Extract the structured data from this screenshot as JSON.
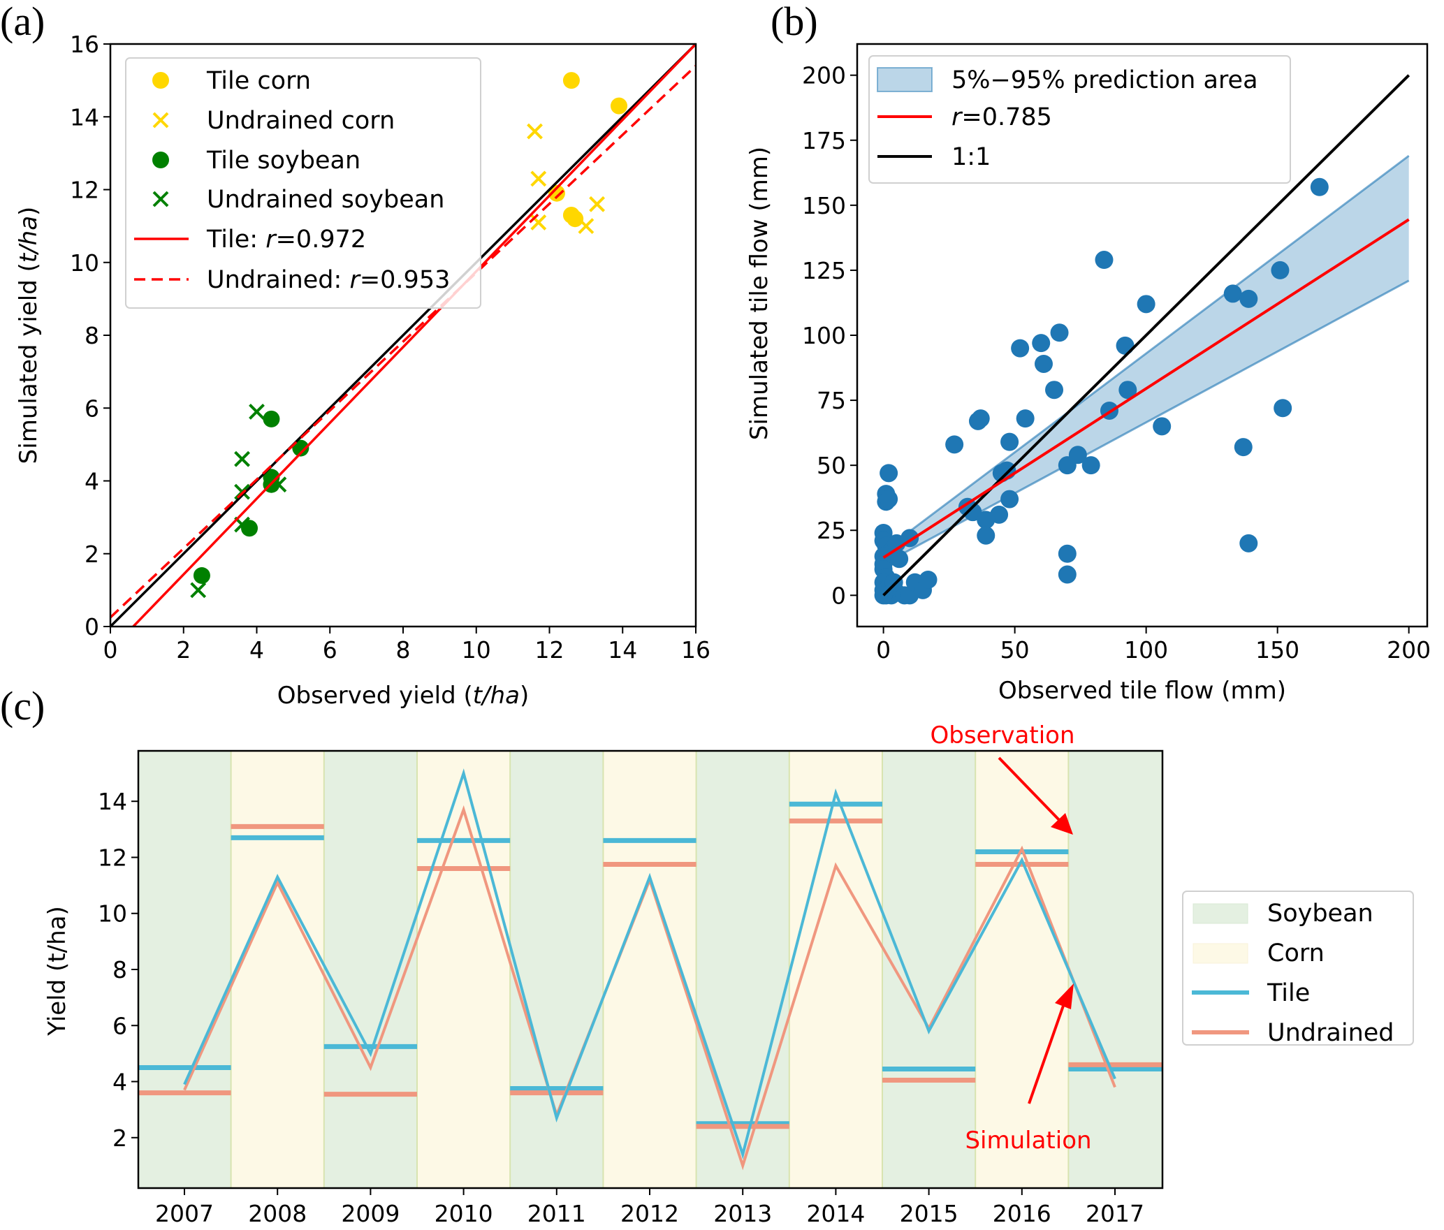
{
  "panel_labels": [
    "(a)",
    "(b)",
    "(c)"
  ],
  "chart_data": [
    {
      "id": "a",
      "type": "scatter",
      "xlabel": "Observed yield (t/ha)",
      "ylabel": "Simulated yield (t/ha)",
      "xlim": [
        0,
        16
      ],
      "ylim": [
        0,
        16
      ],
      "xticks": [
        0,
        2,
        4,
        6,
        8,
        10,
        12,
        14,
        16
      ],
      "yticks": [
        0,
        2,
        4,
        6,
        8,
        10,
        12,
        14,
        16
      ],
      "legend_position": "top-left",
      "series": [
        {
          "name": "Tile corn",
          "marker": "circle",
          "color": "#ffd700",
          "points": [
            [
              12.6,
              15.0
            ],
            [
              13.9,
              14.3
            ],
            [
              12.2,
              11.9
            ],
            [
              12.6,
              11.3
            ],
            [
              12.7,
              11.2
            ]
          ]
        },
        {
          "name": "Undrained corn",
          "marker": "x",
          "color": "#ffd700",
          "points": [
            [
              11.6,
              13.6
            ],
            [
              11.7,
              12.3
            ],
            [
              11.7,
              11.1
            ],
            [
              13.3,
              11.6
            ],
            [
              13.0,
              11.0
            ]
          ]
        },
        {
          "name": "Tile soybean",
          "marker": "circle",
          "color": "#008000",
          "points": [
            [
              4.4,
              5.7
            ],
            [
              5.2,
              4.9
            ],
            [
              4.4,
              4.1
            ],
            [
              4.4,
              3.9
            ],
            [
              3.8,
              2.7
            ],
            [
              2.5,
              1.4
            ]
          ]
        },
        {
          "name": "Undrained soybean",
          "marker": "x",
          "color": "#008000",
          "points": [
            [
              4.0,
              5.9
            ],
            [
              3.6,
              4.6
            ],
            [
              3.6,
              3.7
            ],
            [
              4.6,
              3.9
            ],
            [
              3.6,
              2.8
            ],
            [
              2.4,
              1.0
            ]
          ]
        }
      ],
      "lines": [
        {
          "name": "Tile: r=0.972",
          "label_prefix": "Tile: ",
          "r": "0.972",
          "style": "solid",
          "color": "#ff0000",
          "x": [
            0,
            16
          ],
          "y": [
            -0.65,
            16.0
          ]
        },
        {
          "name": "Undrained: r=0.953",
          "label_prefix": "Undrained: ",
          "r": "0.953",
          "style": "dashed",
          "color": "#ff0000",
          "x": [
            0,
            16
          ],
          "y": [
            0.25,
            15.4
          ]
        },
        {
          "name": "1:1",
          "style": "solid",
          "color": "#000000",
          "x": [
            0,
            16
          ],
          "y": [
            0,
            16
          ]
        }
      ]
    },
    {
      "id": "b",
      "type": "scatter",
      "xlabel": "Observed tile flow (mm)",
      "ylabel": "Simulated tile flow (mm)",
      "xlim": [
        -10,
        207
      ],
      "ylim": [
        -12,
        212
      ],
      "xticks": [
        0,
        50,
        100,
        150,
        200
      ],
      "yticks": [
        0,
        25,
        50,
        75,
        100,
        125,
        150,
        175,
        200
      ],
      "legend_position": "top-left",
      "legend": [
        "5%−95% prediction area",
        "r=0.785",
        "1:1"
      ],
      "r": "0.785",
      "point_color": "#1f77b4",
      "points": [
        [
          166,
          157
        ],
        [
          84,
          129
        ],
        [
          100,
          112
        ],
        [
          133,
          116
        ],
        [
          139,
          114
        ],
        [
          151,
          125
        ],
        [
          92,
          96
        ],
        [
          60,
          97
        ],
        [
          61,
          89
        ],
        [
          67,
          101
        ],
        [
          52,
          95
        ],
        [
          93,
          79
        ],
        [
          65,
          79
        ],
        [
          86,
          71
        ],
        [
          106,
          65
        ],
        [
          152,
          72
        ],
        [
          137,
          57
        ],
        [
          54,
          68
        ],
        [
          36,
          67
        ],
        [
          37,
          68
        ],
        [
          27,
          58
        ],
        [
          48,
          59
        ],
        [
          32,
          34
        ],
        [
          45,
          47
        ],
        [
          47,
          48
        ],
        [
          34,
          32
        ],
        [
          44,
          31
        ],
        [
          48,
          37
        ],
        [
          39,
          29
        ],
        [
          39,
          23
        ],
        [
          70,
          50
        ],
        [
          74,
          54
        ],
        [
          79,
          50
        ],
        [
          70,
          16
        ],
        [
          70,
          8
        ],
        [
          139,
          20
        ],
        [
          2,
          47
        ],
        [
          1,
          39
        ],
        [
          1,
          36
        ],
        [
          2,
          37
        ],
        [
          0,
          24
        ],
        [
          0,
          21
        ],
        [
          1,
          19
        ],
        [
          3,
          17
        ],
        [
          5,
          20
        ],
        [
          10,
          22
        ],
        [
          0,
          15
        ],
        [
          0,
          12
        ],
        [
          0,
          10
        ],
        [
          1,
          7
        ],
        [
          0,
          5
        ],
        [
          0,
          2
        ],
        [
          1,
          0
        ],
        [
          3,
          0
        ],
        [
          5,
          1
        ],
        [
          8,
          0
        ],
        [
          10,
          0
        ],
        [
          12,
          5
        ],
        [
          15,
          2
        ],
        [
          17,
          6
        ],
        [
          2,
          3
        ],
        [
          0,
          0
        ],
        [
          4,
          5
        ],
        [
          6,
          14
        ]
      ],
      "band": {
        "x": [
          0,
          200
        ],
        "lower": [
          12,
          121
        ],
        "upper": [
          17,
          169
        ],
        "color": "#1f77b4"
      },
      "fit_line": {
        "x": [
          0,
          200
        ],
        "y": [
          14.5,
          144.5
        ],
        "color": "#ff0000"
      },
      "one_to_one": {
        "x": [
          0,
          200
        ],
        "y": [
          0,
          200
        ],
        "color": "#000000"
      }
    },
    {
      "id": "c",
      "type": "line",
      "ylabel": "Yield (t/ha)",
      "ylim": [
        0.2,
        15.8
      ],
      "yticks": [
        2,
        4,
        6,
        8,
        10,
        12,
        14
      ],
      "categories": [
        "2007",
        "2008",
        "2009",
        "2010",
        "2011",
        "2012",
        "2013",
        "2014",
        "2015",
        "2016",
        "2017"
      ],
      "crops": [
        "Soybean",
        "Corn",
        "Soybean",
        "Corn",
        "Soybean",
        "Corn",
        "Soybean",
        "Corn",
        "Soybean",
        "Corn",
        "Soybean"
      ],
      "crop_colors": {
        "Soybean": "#e4f0e1",
        "Corn": "#fdf9e6"
      },
      "legend_position": "right",
      "legend": [
        "Soybean",
        "Corn",
        "Tile",
        "Undrained"
      ],
      "series": [
        {
          "name": "Tile",
          "color": "#4bb8d6",
          "simulated": [
            3.9,
            11.3,
            5.0,
            15.0,
            2.7,
            11.3,
            1.4,
            14.3,
            5.8,
            11.9,
            4.1
          ],
          "observed": [
            4.5,
            12.7,
            5.25,
            12.6,
            3.75,
            12.6,
            2.5,
            13.9,
            4.45,
            12.2,
            4.45
          ]
        },
        {
          "name": "Undrained",
          "color": "#f0977f",
          "simulated": [
            3.7,
            11.1,
            4.5,
            13.7,
            2.8,
            11.2,
            1.0,
            11.7,
            5.9,
            12.3,
            3.8
          ],
          "observed": [
            3.6,
            13.1,
            3.55,
            11.6,
            3.6,
            11.75,
            2.4,
            13.3,
            4.05,
            11.75,
            4.6
          ]
        }
      ],
      "annotations": [
        {
          "text": "Observation",
          "points_to": "2016 observed bar end"
        },
        {
          "text": "Simulation",
          "points_to": "2016-2017 simulated line"
        }
      ]
    }
  ]
}
